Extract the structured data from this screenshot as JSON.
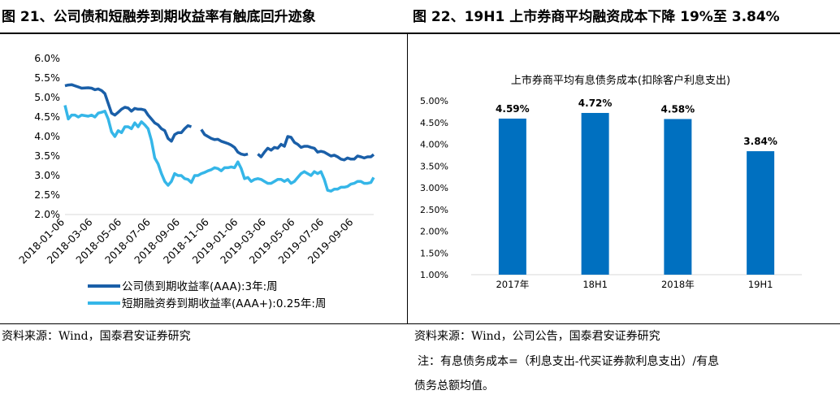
{
  "left": {
    "title": "图 21、公司债和短融券到期收益率有触底回升迹象",
    "source": "资料来源：Wind，国泰君安证券研究"
  },
  "right": {
    "title": "图 22、19H1 上市券商平均融资成本下降 19%至 3.84%",
    "source": "资料来源：Wind，公司公告，国泰君安证券研究",
    "note_line1": "注：有息债务成本=（利息支出-代买证券款利息支出）/有息",
    "note_line2": "债务总额均值。"
  },
  "chart_data": [
    {
      "type": "line",
      "title": "",
      "xlabel": "",
      "ylabel": "",
      "ylim": [
        0.02,
        0.06
      ],
      "yticks": [
        "6.0%",
        "5.5%",
        "5.0%",
        "4.5%",
        "4.0%",
        "3.5%",
        "3.0%",
        "2.5%",
        "2.0%"
      ],
      "xticks": [
        "2018-01-06",
        "2018-03-06",
        "2018-05-06",
        "2018-07-06",
        "2018-09-06",
        "2018-11-06",
        "2019-01-06",
        "2019-03-06",
        "2019-05-06",
        "2019-07-06",
        "2019-09-06"
      ],
      "x_range": [
        "2018-01-06",
        "2019-10-18"
      ],
      "grid": false,
      "legend": "bottom",
      "series": [
        {
          "name": "公司债到期收益率(AAA):3年:周",
          "color": "#1a5fa8",
          "x": [
            "2018-01-06",
            "2018-01-13",
            "2018-01-20",
            "2018-01-27",
            "2018-02-03",
            "2018-02-10",
            "2018-02-24",
            "2018-03-03",
            "2018-03-10",
            "2018-03-17",
            "2018-03-24",
            "2018-03-31",
            "2018-04-07",
            "2018-04-14",
            "2018-04-21",
            "2018-04-28",
            "2018-05-05",
            "2018-05-12",
            "2018-05-19",
            "2018-05-26",
            "2018-06-02",
            "2018-06-09",
            "2018-06-16",
            "2018-06-23",
            "2018-06-30",
            "2018-07-07",
            "2018-07-14",
            "2018-07-21",
            "2018-07-28",
            "2018-08-04",
            "2018-08-11",
            "2018-08-18",
            "2018-08-25",
            "2018-09-01",
            "2018-09-08",
            "2018-09-15",
            "2018-09-22",
            "2018-09-29",
            "2018-10-20",
            "2018-10-27",
            "2018-11-03",
            "2018-11-10",
            "2018-11-17",
            "2018-11-24",
            "2018-12-01",
            "2018-12-08",
            "2018-12-15",
            "2018-12-22",
            "2018-12-29",
            "2019-01-05",
            "2019-01-12",
            "2019-01-19",
            "2019-01-26",
            "2019-02-16",
            "2019-02-23",
            "2019-03-02",
            "2019-03-09",
            "2019-03-16",
            "2019-03-23",
            "2019-03-30",
            "2019-04-06",
            "2019-04-13",
            "2019-04-20",
            "2019-04-27",
            "2019-05-04",
            "2019-05-11",
            "2019-05-18",
            "2019-05-25",
            "2019-06-01",
            "2019-06-08",
            "2019-06-15",
            "2019-06-22",
            "2019-06-29",
            "2019-07-06",
            "2019-07-13",
            "2019-07-20",
            "2019-07-27",
            "2019-08-03",
            "2019-08-10",
            "2019-08-17",
            "2019-08-24",
            "2019-08-31",
            "2019-09-07",
            "2019-09-14",
            "2019-09-21",
            "2019-09-28",
            "2019-10-05",
            "2019-10-12",
            "2019-10-18"
          ],
          "y": [
            5.3,
            5.32,
            5.33,
            5.3,
            5.27,
            5.24,
            5.25,
            5.24,
            5.2,
            5.22,
            5.18,
            5.1,
            4.85,
            4.6,
            4.55,
            4.62,
            4.7,
            4.75,
            4.73,
            4.65,
            4.72,
            4.7,
            4.7,
            4.68,
            4.55,
            4.45,
            4.35,
            4.3,
            4.2,
            4.15,
            3.95,
            3.88,
            4.05,
            4.1,
            4.1,
            4.2,
            4.28,
            4.25,
            4.18,
            4.05,
            4.0,
            3.95,
            3.92,
            3.93,
            3.88,
            3.85,
            3.82,
            3.78,
            3.72,
            3.6,
            3.55,
            3.53,
            3.55,
            3.55,
            3.48,
            3.6,
            3.7,
            3.65,
            3.72,
            3.7,
            3.8,
            3.75,
            4.0,
            3.98,
            3.85,
            3.8,
            3.72,
            3.75,
            3.75,
            3.72,
            3.7,
            3.6,
            3.62,
            3.6,
            3.55,
            3.5,
            3.52,
            3.48,
            3.42,
            3.4,
            3.45,
            3.42,
            3.42,
            3.5,
            3.48,
            3.45,
            3.48,
            3.48,
            3.54
          ],
          "breaks_after": [
            "2018-09-29",
            "2019-01-26"
          ]
        },
        {
          "name": "短期融资券到期收益率(AAA+):0.25年:周",
          "color": "#35b6e8",
          "x": [
            "2018-01-06",
            "2018-01-13",
            "2018-01-20",
            "2018-01-27",
            "2018-02-03",
            "2018-02-10",
            "2018-02-24",
            "2018-03-03",
            "2018-03-10",
            "2018-03-17",
            "2018-03-24",
            "2018-03-31",
            "2018-04-07",
            "2018-04-14",
            "2018-04-21",
            "2018-04-28",
            "2018-05-05",
            "2018-05-12",
            "2018-05-19",
            "2018-05-26",
            "2018-06-02",
            "2018-06-09",
            "2018-06-16",
            "2018-06-23",
            "2018-06-30",
            "2018-07-07",
            "2018-07-14",
            "2018-07-21",
            "2018-07-28",
            "2018-08-04",
            "2018-08-11",
            "2018-08-18",
            "2018-08-25",
            "2018-09-01",
            "2018-09-08",
            "2018-09-15",
            "2018-09-22",
            "2018-09-29",
            "2018-10-06",
            "2018-10-13",
            "2018-10-20",
            "2018-10-27",
            "2018-11-03",
            "2018-11-10",
            "2018-11-17",
            "2018-11-24",
            "2018-12-01",
            "2018-12-08",
            "2018-12-15",
            "2018-12-22",
            "2018-12-29",
            "2019-01-05",
            "2019-01-12",
            "2019-01-19",
            "2019-01-26",
            "2019-02-02",
            "2019-02-09",
            "2019-02-16",
            "2019-02-23",
            "2019-03-02",
            "2019-03-09",
            "2019-03-16",
            "2019-03-23",
            "2019-03-30",
            "2019-04-06",
            "2019-04-13",
            "2019-04-20",
            "2019-04-27",
            "2019-05-04",
            "2019-05-11",
            "2019-05-18",
            "2019-05-25",
            "2019-06-01",
            "2019-06-08",
            "2019-06-15",
            "2019-06-22",
            "2019-06-29",
            "2019-07-06",
            "2019-07-13",
            "2019-07-20",
            "2019-07-27",
            "2019-08-03",
            "2019-08-10",
            "2019-08-17",
            "2019-08-24",
            "2019-08-31",
            "2019-09-07",
            "2019-09-14",
            "2019-09-21",
            "2019-09-28",
            "2019-10-05",
            "2019-10-12",
            "2019-10-18"
          ],
          "y": [
            4.8,
            4.45,
            4.55,
            4.55,
            4.5,
            4.55,
            4.52,
            4.55,
            4.5,
            4.6,
            4.62,
            4.65,
            4.45,
            4.12,
            4.0,
            4.15,
            4.1,
            4.25,
            4.25,
            4.2,
            4.35,
            4.25,
            4.38,
            4.3,
            4.2,
            3.9,
            3.45,
            3.3,
            3.05,
            2.85,
            2.75,
            2.85,
            3.05,
            3.0,
            3.0,
            2.92,
            2.9,
            2.82,
            3.0,
            3.0,
            3.05,
            3.08,
            3.12,
            3.15,
            3.2,
            3.18,
            3.12,
            3.2,
            3.2,
            3.22,
            3.2,
            3.35,
            3.18,
            2.92,
            2.95,
            2.85,
            2.9,
            2.92,
            2.9,
            2.85,
            2.8,
            2.8,
            2.85,
            2.9,
            2.9,
            2.85,
            2.9,
            2.8,
            2.85,
            2.95,
            3.05,
            3.1,
            3.05,
            3.0,
            3.1,
            3.05,
            3.1,
            2.9,
            2.62,
            2.6,
            2.65,
            2.65,
            2.7,
            2.7,
            2.72,
            2.78,
            2.8,
            2.85,
            2.85,
            2.8,
            2.8,
            2.82,
            2.95
          ]
        }
      ]
    },
    {
      "type": "bar",
      "title": "上市券商平均有息债务成本(扣除客户利息支出)",
      "xlabel": "",
      "ylabel": "",
      "categories": [
        "2017年",
        "18H1",
        "2018年",
        "19H1"
      ],
      "values": [
        4.59,
        4.72,
        4.58,
        3.84
      ],
      "data_labels": [
        "4.59%",
        "4.72%",
        "4.58%",
        "3.84%"
      ],
      "ylim": [
        1.0,
        5.0
      ],
      "yticks": [
        "5.00%",
        "4.50%",
        "4.00%",
        "3.50%",
        "3.00%",
        "2.50%",
        "2.00%",
        "1.50%",
        "1.00%"
      ],
      "bar_color": "#0070c0",
      "grid": false
    }
  ]
}
